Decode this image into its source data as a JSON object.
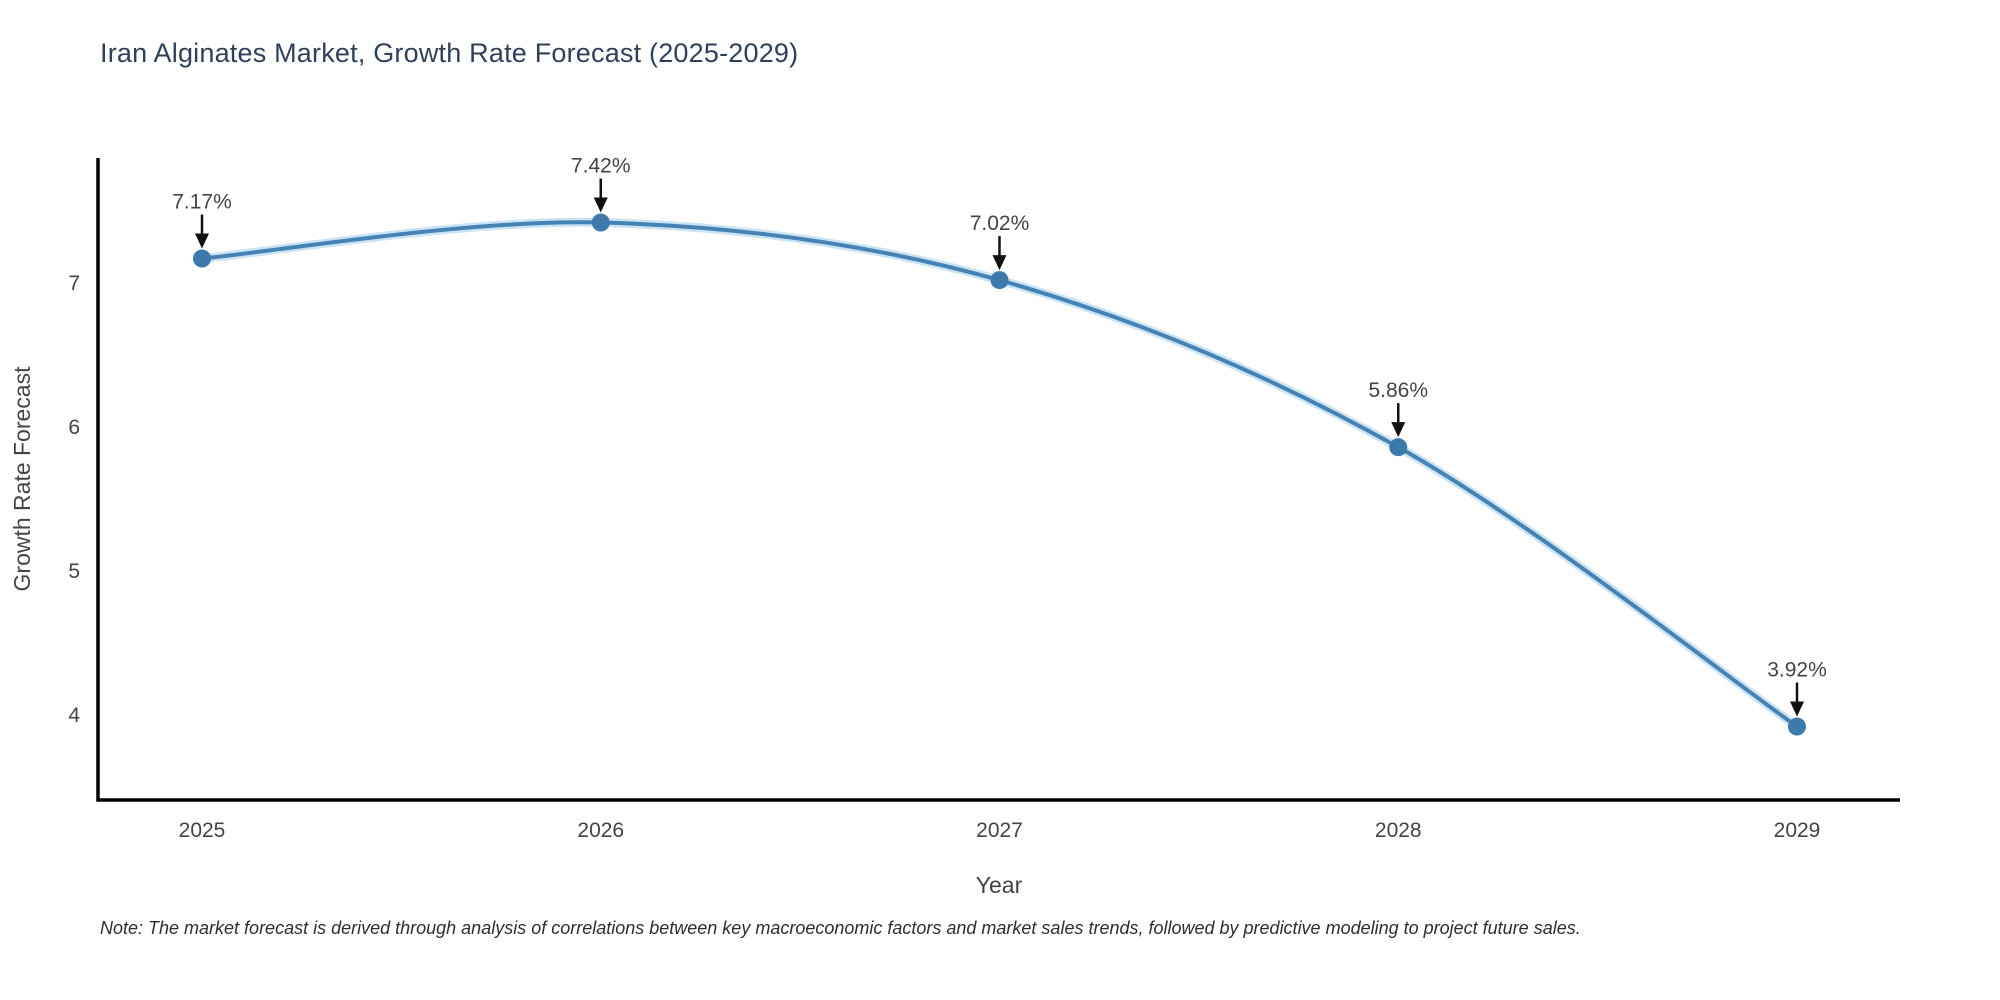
{
  "title": "Iran Alginates Market, Growth Rate Forecast (2025-2029)",
  "note": "Note: The market forecast is derived through analysis of correlations between key macroeconomic factors and market sales trends, followed by predictive modeling to project future sales.",
  "chart_data": {
    "type": "line",
    "title": "Iran Alginates Market, Growth Rate Forecast (2025-2029)",
    "categories": [
      "2025",
      "2026",
      "2027",
      "2028",
      "2029"
    ],
    "values": [
      7.17,
      7.42,
      7.02,
      5.86,
      3.92
    ],
    "point_labels": [
      "7.17%",
      "7.42%",
      "7.02%",
      "5.86%",
      "3.92%"
    ],
    "xlabel": "Year",
    "ylabel": "Growth Rate Forecast",
    "yticks": [
      7,
      6,
      5,
      4
    ],
    "ylim": [
      3.41,
      7.87
    ],
    "grid": false,
    "legend_position": "none",
    "curve": "spline",
    "line_color": "#4682b4",
    "line_glow_color": "rgba(160,205,235,0.55)",
    "marker_color": "#3e79ae",
    "axis_color": "#000000",
    "tick_label_color": "#444444",
    "annotation_color": "#444444",
    "arrow_color": "#111111"
  }
}
